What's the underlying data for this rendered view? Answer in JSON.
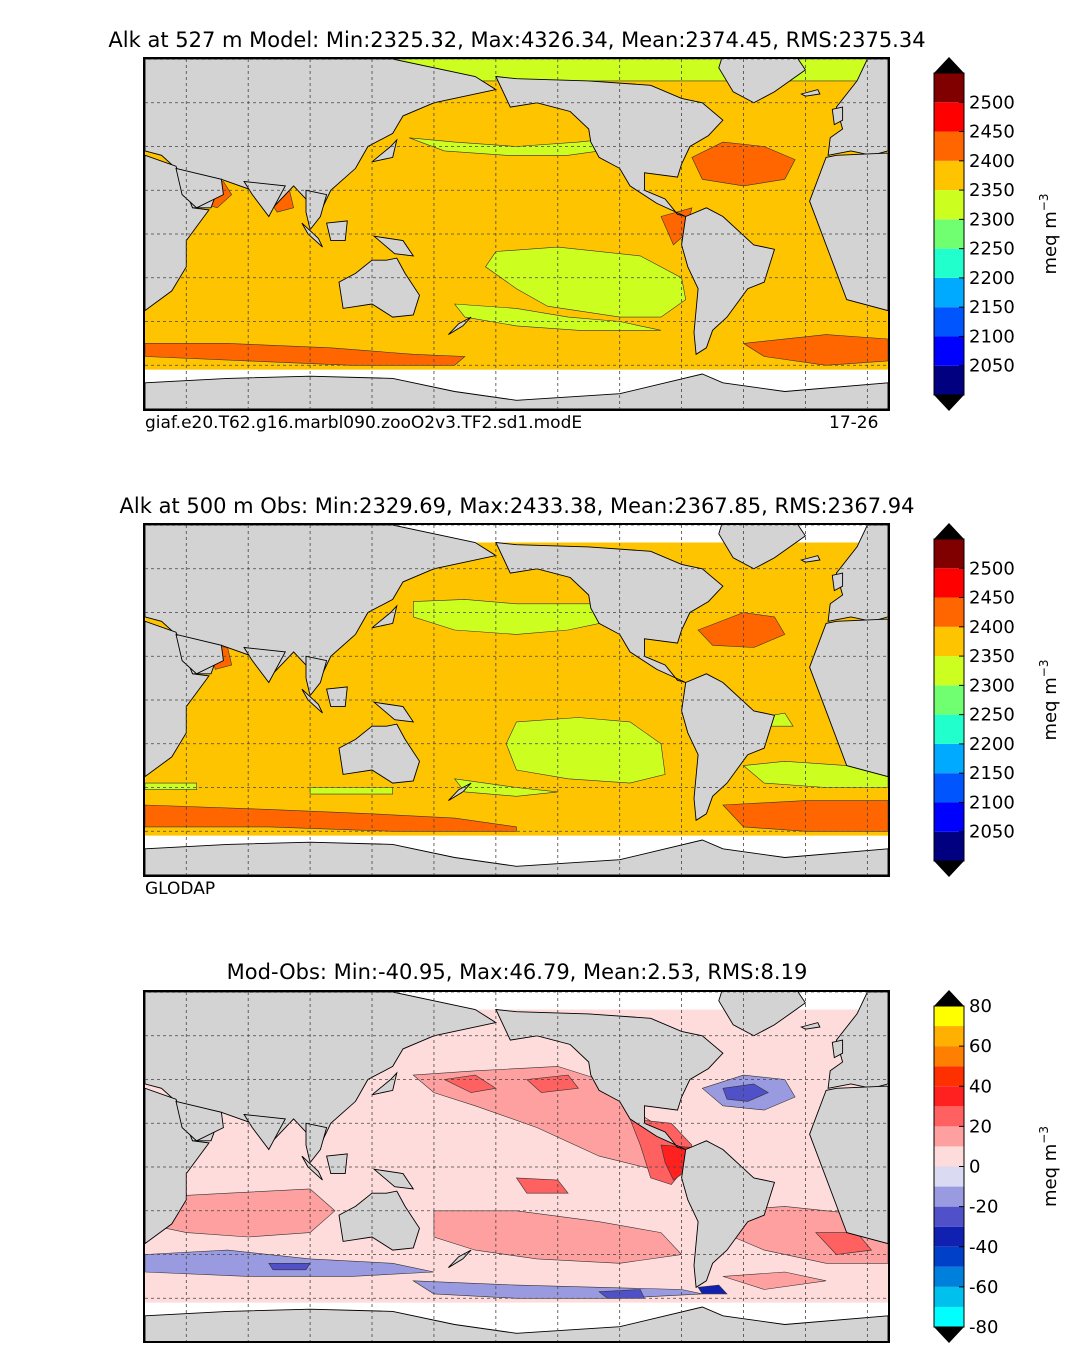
{
  "panels": [
    {
      "id": "model",
      "title": "Alk at 527 m Model: Min:2325.32, Max:4326.34, Mean:2374.45, RMS:2375.34",
      "subtitle_left": "giaf.e20.T62.g16.marbl090.zooO2v3.TF2.sd1.modE",
      "subtitle_right": "17-26",
      "colorbar": "abs"
    },
    {
      "id": "obs",
      "title": "Alk at 500 m Obs: Min:2329.69, Max:2433.38, Mean:2367.85, RMS:2367.94",
      "subtitle_left": "GLODAP",
      "subtitle_right": "",
      "colorbar": "abs"
    },
    {
      "id": "diff",
      "title": "Mod-Obs: Min:-40.95, Max:46.79, Mean:2.53, RMS:8.19",
      "subtitle_left": "",
      "subtitle_right": "",
      "colorbar": "diff"
    }
  ],
  "chart_data": [
    {
      "type": "heatmap",
      "title": "Alk at 527 m Model: Min:2325.32, Max:4326.34, Mean:2374.45, RMS:2375.34",
      "variable": "Alk",
      "depth": "527 m",
      "stats": {
        "min": 2325.32,
        "max": 4326.34,
        "mean": 2374.45,
        "rms": 2375.34
      },
      "colorbar": {
        "ticks": [
          2050,
          2100,
          2150,
          2200,
          2250,
          2300,
          2350,
          2400,
          2450,
          2500
        ],
        "levels": [
          2000,
          2050,
          2100,
          2150,
          2200,
          2250,
          2300,
          2350,
          2400,
          2450,
          2500,
          2550
        ],
        "colors": [
          "#000080",
          "#0000ff",
          "#0055ff",
          "#00aaff",
          "#20ffcc",
          "#70ff70",
          "#ccff20",
          "#ffc400",
          "#ff6600",
          "#ff0000",
          "#800000"
        ],
        "extend": "both",
        "label": "meq m",
        "label_exp": "−3"
      }
    },
    {
      "type": "heatmap",
      "title": "Alk at 500 m Obs: Min:2329.69, Max:2433.38, Mean:2367.85, RMS:2367.94",
      "variable": "Alk",
      "depth": "500 m",
      "stats": {
        "min": 2329.69,
        "max": 2433.38,
        "mean": 2367.85,
        "rms": 2367.94
      },
      "colorbar": {
        "ticks": [
          2050,
          2100,
          2150,
          2200,
          2250,
          2300,
          2350,
          2400,
          2450,
          2500
        ],
        "levels": [
          2000,
          2050,
          2100,
          2150,
          2200,
          2250,
          2300,
          2350,
          2400,
          2450,
          2500,
          2550
        ],
        "colors": [
          "#000080",
          "#0000ff",
          "#0055ff",
          "#00aaff",
          "#20ffcc",
          "#70ff70",
          "#ccff20",
          "#ffc400",
          "#ff6600",
          "#ff0000",
          "#800000"
        ],
        "extend": "both",
        "label": "meq m",
        "label_exp": "−3"
      }
    },
    {
      "type": "heatmap",
      "title": "Mod-Obs: Min:-40.95, Max:46.79, Mean:2.53, RMS:8.19",
      "variable": "Alk difference",
      "stats": {
        "min": -40.95,
        "max": 46.79,
        "mean": 2.53,
        "rms": 8.19
      },
      "colorbar": {
        "ticks": [
          -80,
          -60,
          -40,
          -20,
          0,
          20,
          40,
          60,
          80
        ],
        "levels": [
          -80,
          -70,
          -60,
          -50,
          -40,
          -30,
          -20,
          -10,
          0,
          10,
          20,
          30,
          40,
          50,
          60,
          70,
          80
        ],
        "colors": [
          "#00ffff",
          "#00c0ee",
          "#0080dd",
          "#0040c8",
          "#1020b0",
          "#5050c8",
          "#9a9ae0",
          "#dadaf2",
          "#ffdcdc",
          "#ffa0a0",
          "#ff6060",
          "#ff2020",
          "#ff3000",
          "#ff8000",
          "#ffb000",
          "#ffff00"
        ],
        "extend": "both",
        "label": "meq m",
        "label_exp": "−3"
      }
    }
  ]
}
